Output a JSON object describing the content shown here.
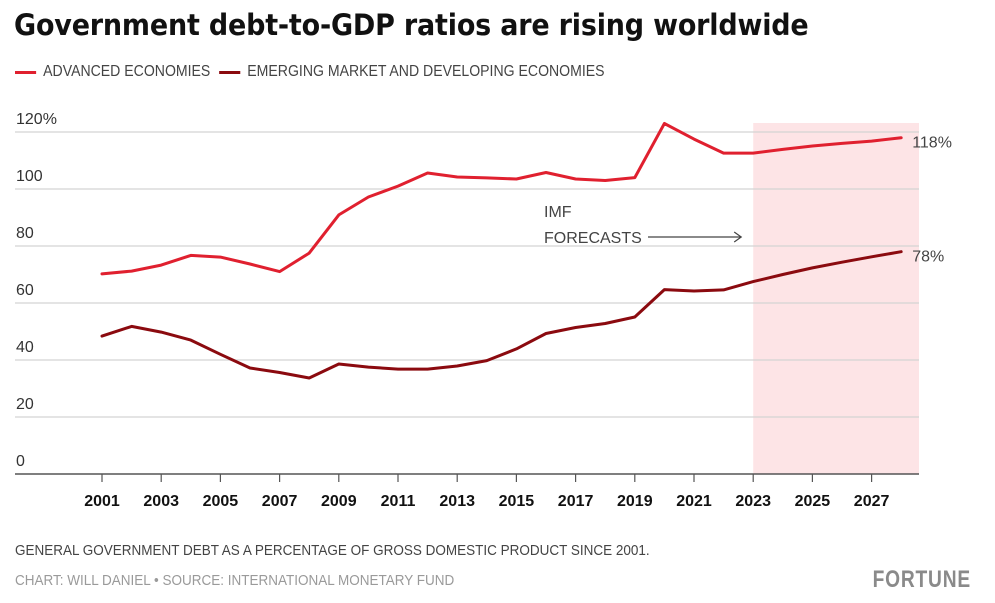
{
  "header": {
    "title": "Government debt-to-GDP ratios are rising worldwide"
  },
  "legend": [
    {
      "label": "ADVANCED ECONOMIES",
      "color": "#e0202f"
    },
    {
      "label": "EMERGING MARKET AND DEVELOPING ECONOMIES",
      "color": "#8b0a0f"
    }
  ],
  "chart_data": {
    "type": "line",
    "title": "Government debt-to-GDP ratios are rising worldwide",
    "xlabel": "",
    "ylabel": "",
    "x": [
      2001,
      2002,
      2003,
      2004,
      2005,
      2006,
      2007,
      2008,
      2009,
      2010,
      2011,
      2012,
      2013,
      2014,
      2015,
      2016,
      2017,
      2018,
      2019,
      2020,
      2021,
      2022,
      2023,
      2024,
      2025,
      2026,
      2027,
      2028
    ],
    "series": [
      {
        "name": "ADVANCED ECONOMIES",
        "color": "#e0202f",
        "values": [
          70.2,
          71.2,
          73.3,
          76.7,
          76.1,
          73.7,
          71.0,
          77.5,
          90.9,
          97.2,
          101.0,
          105.6,
          104.2,
          103.9,
          103.5,
          105.8,
          103.5,
          103.0,
          104.0,
          123.0,
          117.5,
          112.6,
          112.6,
          113.9,
          115.1,
          116.0,
          116.8,
          118.0
        ],
        "end_label": "118%"
      },
      {
        "name": "EMERGING MARKET AND DEVELOPING ECONOMIES",
        "color": "#8b0a0f",
        "values": [
          48.4,
          51.8,
          49.8,
          47.0,
          42.0,
          37.2,
          35.6,
          33.7,
          38.6,
          37.5,
          36.8,
          36.8,
          37.9,
          39.8,
          43.9,
          49.3,
          51.4,
          52.8,
          55.1,
          64.7,
          64.2,
          64.6,
          67.5,
          70.0,
          72.3,
          74.3,
          76.2,
          78.0
        ],
        "end_label": "78%"
      }
    ],
    "ylim": [
      0,
      120
    ],
    "xlim": [
      1998.1,
      2028.4
    ],
    "y_ticks": [
      0,
      20,
      40,
      60,
      80,
      100,
      120
    ],
    "y_tick_labels": [
      "0",
      "20",
      "40",
      "60",
      "80",
      "100",
      "120%"
    ],
    "x_ticks": [
      2001,
      2003,
      2005,
      2007,
      2009,
      2011,
      2013,
      2015,
      2017,
      2019,
      2021,
      2023,
      2025,
      2027
    ],
    "x_tick_labels": [
      "2001",
      "2003",
      "2005",
      "2007",
      "2009",
      "2011",
      "2013",
      "2015",
      "2017",
      "2019",
      "2021",
      "2023",
      "2025",
      "2027"
    ],
    "grid": true,
    "legend_position": "top-left",
    "forecast_region": {
      "start": 2023,
      "end": 2028.4,
      "color": "#fde4e6"
    },
    "annotation": {
      "lines": [
        "IMF",
        "FORECASTS"
      ],
      "arrow": "right",
      "points_to": 2023
    }
  },
  "footer": {
    "subtitle": "GENERAL GOVERNMENT DEBT AS A PERCENTAGE OF GROSS DOMESTIC PRODUCT SINCE 2001.",
    "credit": "CHART: WILL DANIEL • SOURCE: INTERNATIONAL MONETARY FUND",
    "brand": "FORTUNE"
  }
}
